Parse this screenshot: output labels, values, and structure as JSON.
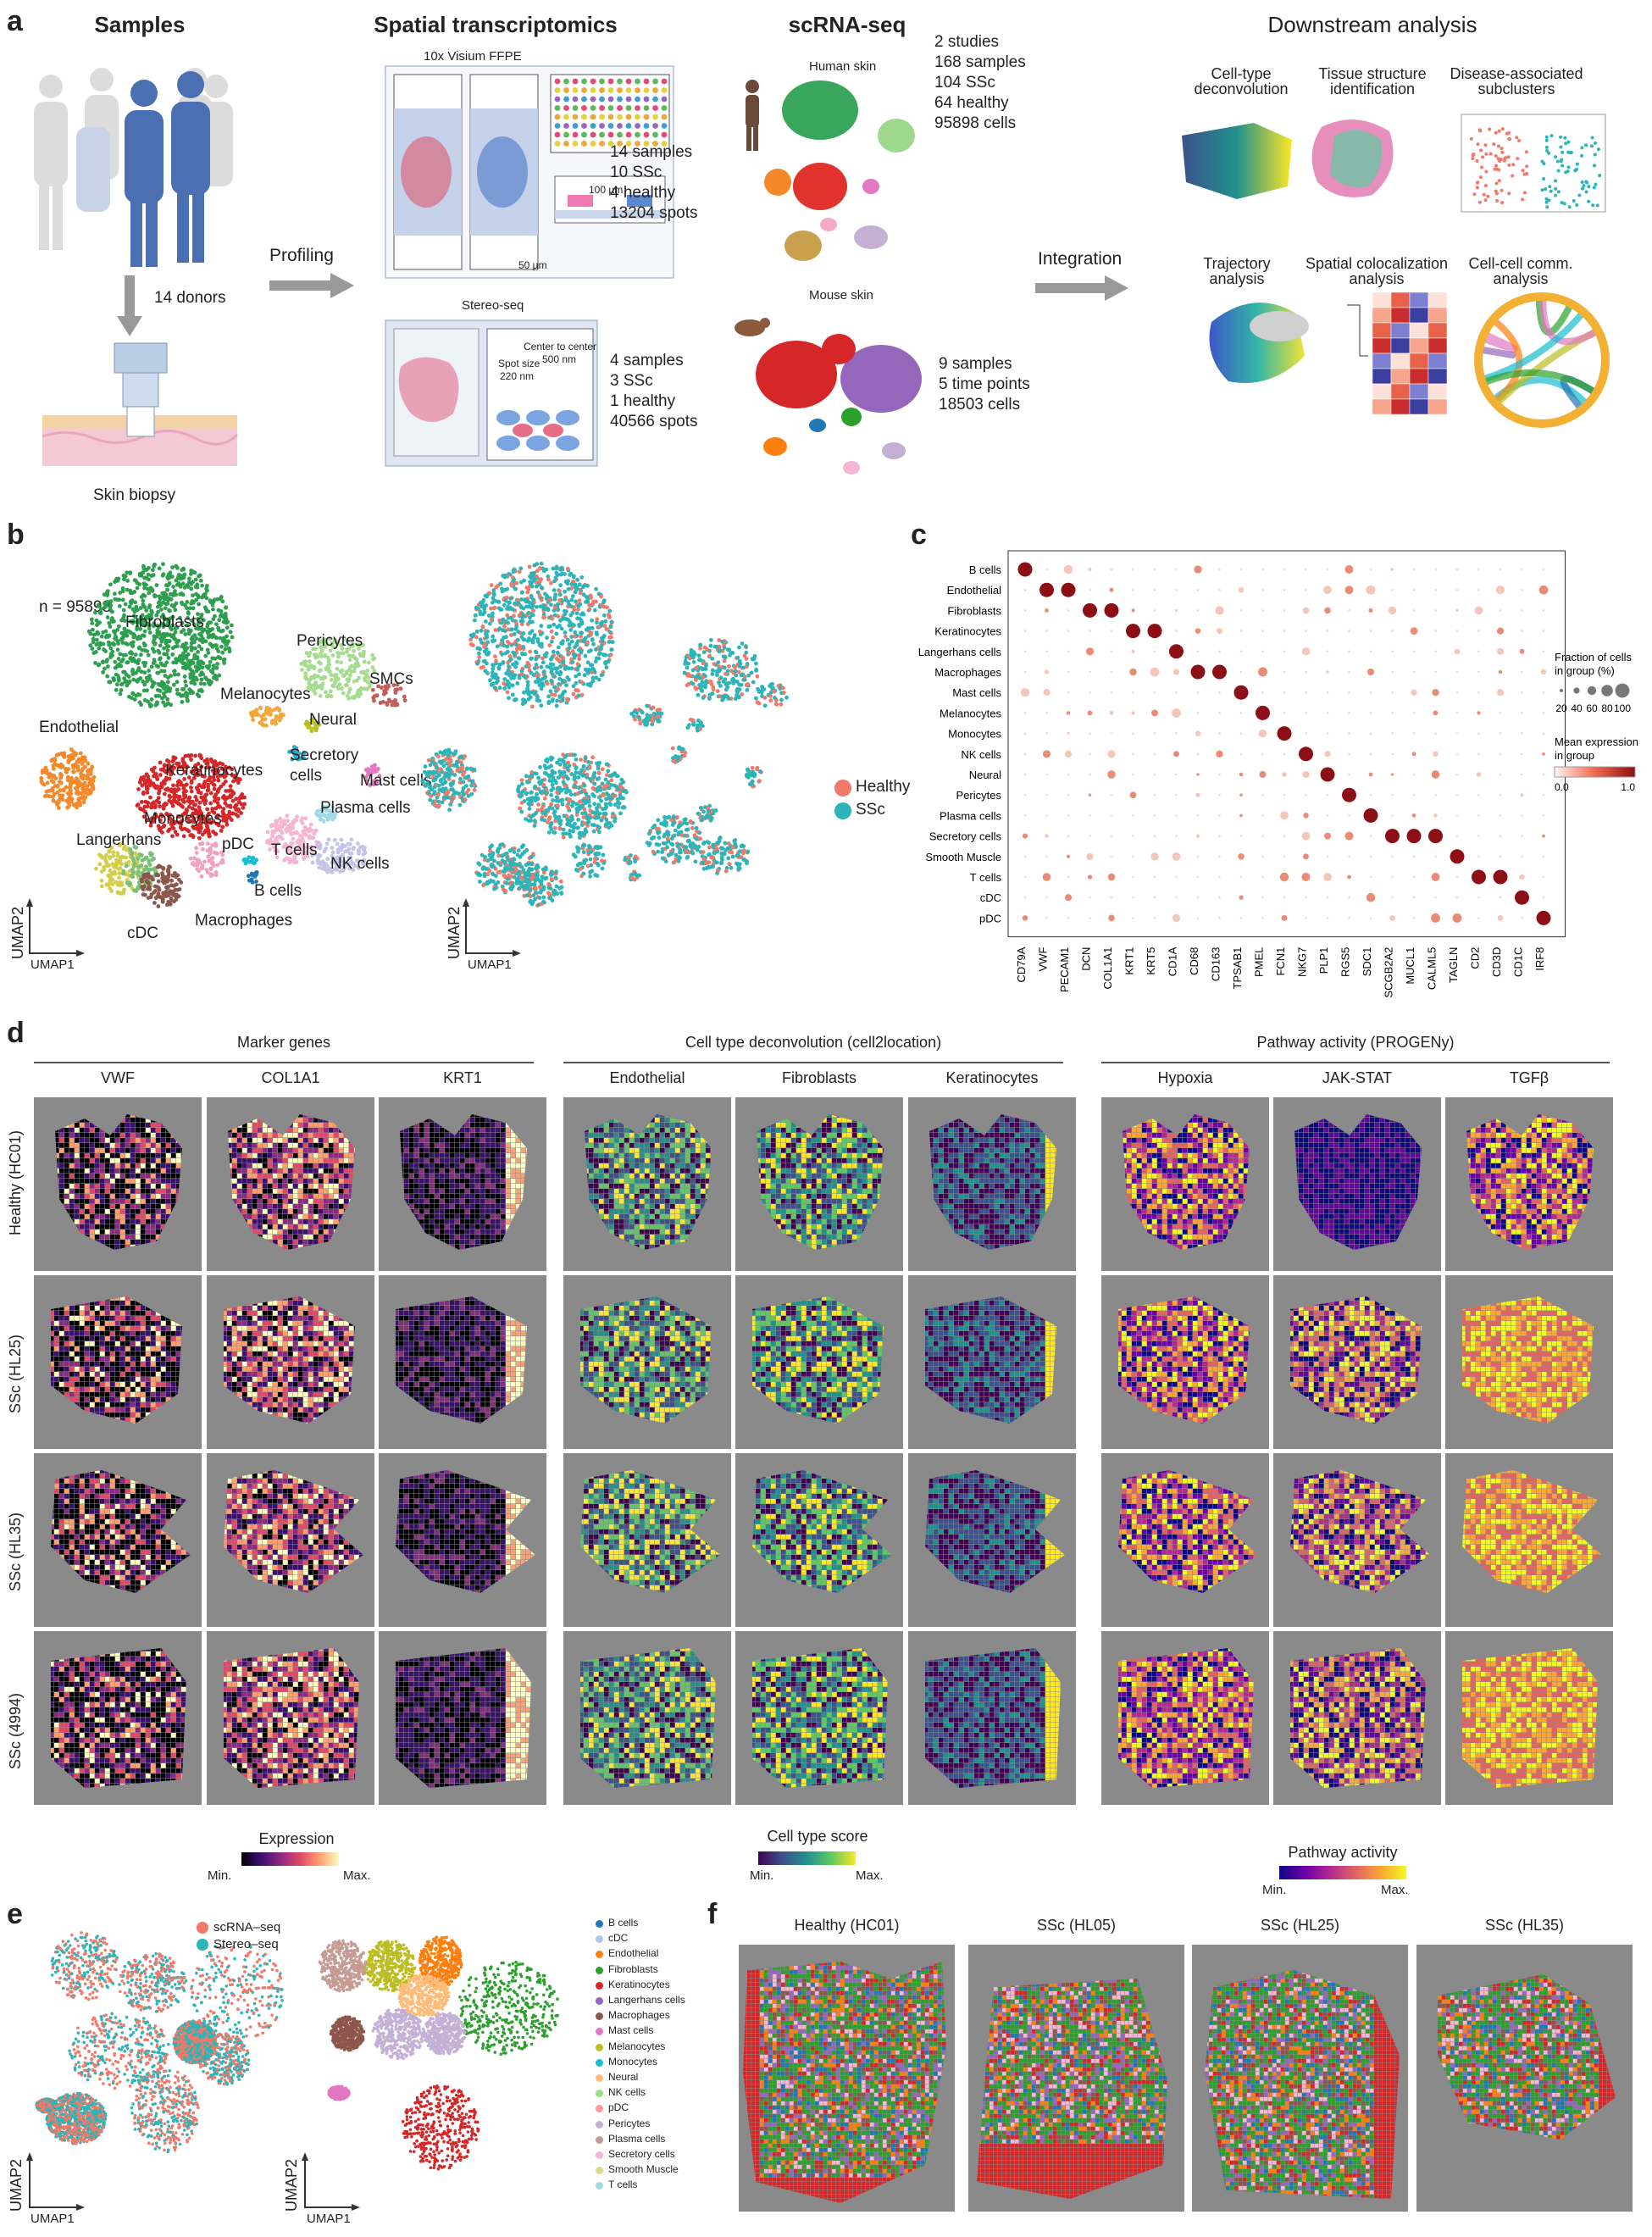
{
  "panel_a": {
    "label": "a",
    "samples": {
      "title": "Samples",
      "donors": "14 donors",
      "biopsy": "Skin biopsy",
      "profiling": "Profiling"
    },
    "spatial": {
      "title": "Spatial transcriptomics",
      "visium": "10x Visium FFPE",
      "visium_stats": [
        "14 samples",
        "10 SSc",
        "4 healthy",
        "13204 spots"
      ],
      "visium_scale1": "100 µm",
      "visium_scale2": "50 µm",
      "stereo": "Stereo-seq",
      "stereo_center": "Center to center",
      "stereo_center_val": "500 nm",
      "stereo_spot": "Spot size",
      "stereo_spot_val": "220 nm",
      "stereo_stats": [
        "4 samples",
        "3 SSc",
        "1 healthy",
        "40566 spots"
      ]
    },
    "scrna": {
      "title": "scRNA-seq",
      "human": "Human skin",
      "human_stats": [
        "2 studies",
        "168 samples",
        "104 SSc",
        "64 healthy",
        "95898 cells"
      ],
      "mouse": "Mouse skin",
      "mouse_stats": [
        "9 samples",
        "5 time points",
        "18503 cells"
      ],
      "integration": "Integration"
    },
    "downstream": {
      "title": "Downstream analysis",
      "items": [
        "Cell-type\ndeconvolution",
        "Tissue structure\nidentification",
        "Disease-associated\nsubclusters",
        "Trajectory\nanalysis",
        "Spatial colocalization\nanalysis",
        "Cell-cell comm.\nanalysis"
      ]
    }
  },
  "panel_b": {
    "label": "b",
    "n": "n = 95898",
    "clusters": [
      "Fibroblasts",
      "Pericytes",
      "SMCs",
      "Melanocytes",
      "Neural",
      "Endothelial",
      "Keratinocytes",
      "Secretory\ncells",
      "Mast cells",
      "Plasma cells",
      "Monocytes",
      "Langerhans",
      "pDC",
      "T cells",
      "NK cells",
      "B cells",
      "Macrophages",
      "cDC"
    ],
    "umap1": "UMAP1",
    "umap2": "UMAP2",
    "legend": [
      {
        "name": "Healthy",
        "color": "#f07a6a"
      },
      {
        "name": "SSc",
        "color": "#2bb5b8"
      }
    ]
  },
  "panel_c": {
    "label": "c",
    "rows": [
      "B cells",
      "Endothelial",
      "Fibroblasts",
      "Keratinocytes",
      "Langerhans cells",
      "Macrophages",
      "Mast cells",
      "Melanocytes",
      "Monocytes",
      "NK cells",
      "Neural",
      "Pericytes",
      "Plasma cells",
      "Secretory cells",
      "Smooth Muscle",
      "T cells",
      "cDC",
      "pDC"
    ],
    "cols": [
      "CD79A",
      "VWF",
      "PECAM1",
      "DCN",
      "COL1A1",
      "KRT1",
      "KRT5",
      "CD1A",
      "CD68",
      "CD163",
      "TPSAB1",
      "PMEL",
      "FCN1",
      "NKG7",
      "PLP1",
      "RGS5",
      "SDC1",
      "SCGB2A2",
      "MUCL1",
      "CALML5",
      "TAGLN",
      "CD2",
      "CD3D",
      "CD1C",
      "IRF8"
    ],
    "diag": [
      [
        0,
        0
      ],
      [
        1,
        1
      ],
      [
        1,
        2
      ],
      [
        2,
        3
      ],
      [
        2,
        4
      ],
      [
        3,
        5
      ],
      [
        3,
        6
      ],
      [
        4,
        7
      ],
      [
        5,
        8
      ],
      [
        5,
        9
      ],
      [
        6,
        10
      ],
      [
        7,
        11
      ],
      [
        8,
        12
      ],
      [
        9,
        13
      ],
      [
        10,
        14
      ],
      [
        11,
        15
      ],
      [
        12,
        16
      ],
      [
        13,
        17
      ],
      [
        13,
        18
      ],
      [
        13,
        19
      ],
      [
        14,
        20
      ],
      [
        15,
        21
      ],
      [
        15,
        22
      ],
      [
        16,
        23
      ],
      [
        17,
        24
      ]
    ],
    "fraction_title": "Fraction of cells\nin group (%)",
    "fraction_ticks": [
      "20",
      "40",
      "60",
      "80",
      "100"
    ],
    "mean_title": "Mean expression\nin group",
    "mean_min": "0.0",
    "mean_max": "1.0"
  },
  "panel_d": {
    "label": "d",
    "groups": [
      "Marker genes",
      "Cell type deconvolution (cell2location)",
      "Pathway activity (PROGENy)"
    ],
    "cols": [
      "VWF",
      "COL1A1",
      "KRT1",
      "Endothelial",
      "Fibroblasts",
      "Keratinocytes",
      "Hypoxia",
      "JAK-STAT",
      "TGFβ"
    ],
    "rows": [
      "Healthy (HC01)",
      "SSc (HL25)",
      "SSc (HL35)",
      "SSc (4994)"
    ],
    "scale1": {
      "title": "Expression",
      "min": "Min.",
      "max": "Max."
    },
    "scale2": {
      "title": "Cell type score",
      "min": "Min.",
      "max": "Max."
    },
    "scale3": {
      "title": "Pathway activity",
      "min": "Min.",
      "max": "Max."
    }
  },
  "panel_e": {
    "label": "e",
    "legend1": [
      {
        "name": "scRNA–seq",
        "color": "#f07a6a"
      },
      {
        "name": "Stereo–seq",
        "color": "#2bb5b8"
      }
    ],
    "legend2": [
      {
        "name": "B cells",
        "color": "#1f77b4"
      },
      {
        "name": "cDC",
        "color": "#aec7e8"
      },
      {
        "name": "Endothelial",
        "color": "#ff7f0e"
      },
      {
        "name": "Fibroblasts",
        "color": "#2ca02c"
      },
      {
        "name": "Keratinocytes",
        "color": "#d62728"
      },
      {
        "name": "Langerhans cells",
        "color": "#9467bd"
      },
      {
        "name": "Macrophages",
        "color": "#8c564b"
      },
      {
        "name": "Mast cells",
        "color": "#e377c2"
      },
      {
        "name": "Melanocytes",
        "color": "#bcbd22"
      },
      {
        "name": "Monocytes",
        "color": "#17becf"
      },
      {
        "name": "Neural",
        "color": "#ffbb78"
      },
      {
        "name": "NK cells",
        "color": "#98df8a"
      },
      {
        "name": "pDC",
        "color": "#ff9896"
      },
      {
        "name": "Pericytes",
        "color": "#c5b0d5"
      },
      {
        "name": "Plasma cells",
        "color": "#c49c94"
      },
      {
        "name": "Secretory cells",
        "color": "#f7b6d2"
      },
      {
        "name": "Smooth Muscle",
        "color": "#dbdb8d"
      },
      {
        "name": "T cells",
        "color": "#9edae5"
      }
    ],
    "umap1": "UMAP1",
    "umap2": "UMAP2"
  },
  "panel_f": {
    "label": "f",
    "titles": [
      "Healthy (HC01)",
      "SSc (HL05)",
      "SSc (HL25)",
      "SSc (HL35)"
    ]
  }
}
